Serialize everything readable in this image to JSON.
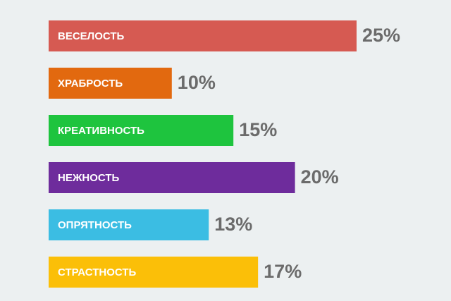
{
  "chart_data": {
    "type": "bar",
    "orientation": "horizontal",
    "categories": [
      "ВЕСЕЛОСТЬ",
      "ХРАБРОСТЬ",
      "КРЕАТИВНОСТЬ",
      "НЕЖНОСТЬ",
      "ОПРЯТНОСТЬ",
      "СТРАСТНОСТЬ"
    ],
    "values": [
      25,
      10,
      15,
      20,
      13,
      17
    ],
    "value_labels": [
      "25%",
      "10%",
      "15%",
      "20%",
      "13%",
      "17%"
    ],
    "colors": [
      "#d65a52",
      "#e2690f",
      "#1ec43e",
      "#6e2c9c",
      "#3bbde3",
      "#fbbf08"
    ]
  }
}
